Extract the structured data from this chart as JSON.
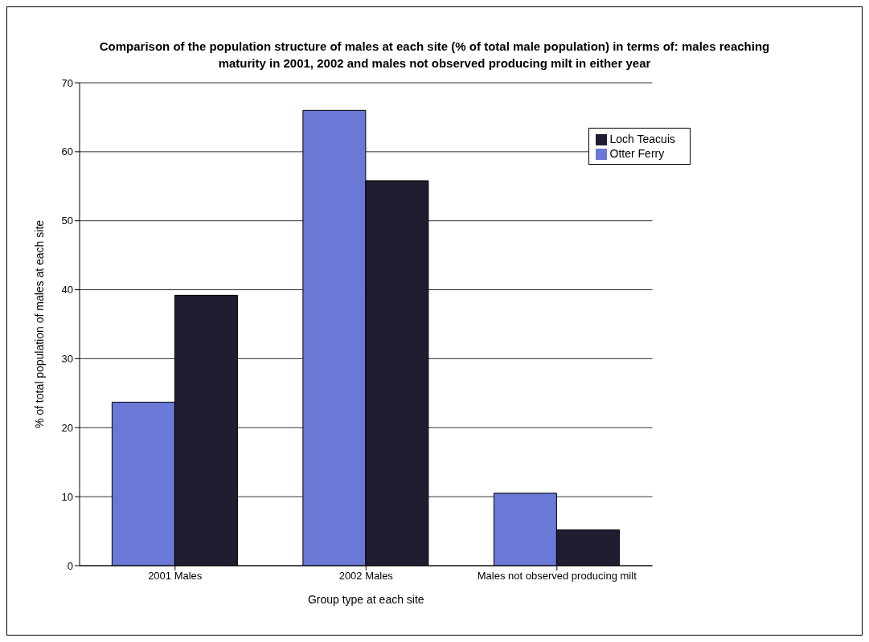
{
  "chart_data": {
    "type": "bar",
    "title": "Comparison of the population structure of males at each site (% of total male population) in terms of: males reaching maturity in 2001, 2002 and males not observed producing milt in either year",
    "xlabel": "Group type at each site",
    "ylabel": "% of total population of males at each site",
    "categories": [
      "2001 Males",
      "2002 Males",
      "Males not observed producing milt"
    ],
    "series": [
      {
        "name": "Otter Ferry",
        "color": "#6a78d6",
        "values": [
          23.7,
          66.0,
          10.5
        ]
      },
      {
        "name": "Loch Teacuis",
        "color": "#1e1e30",
        "values": [
          39.2,
          55.8,
          5.2
        ]
      }
    ],
    "ylim": [
      0,
      70
    ],
    "yticks": [
      0,
      10,
      20,
      30,
      40,
      50,
      60,
      70
    ],
    "grid": "y",
    "legend": "top right"
  }
}
